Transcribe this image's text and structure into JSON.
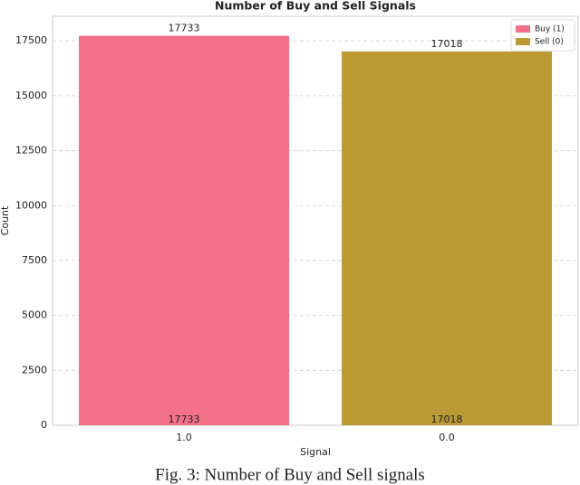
{
  "chart_data": {
    "type": "bar",
    "title": "Number of Buy and Sell Signals",
    "x_label": "Signal",
    "y_label": "Count",
    "categories": [
      "1.0",
      "0.0"
    ],
    "series": [
      {
        "name": "Buy (1)",
        "color": "#f37089",
        "values": [
          17733,
          null
        ]
      },
      {
        "name": "Sell (0)",
        "color": "#bb9a35",
        "values": [
          null,
          17018
        ]
      }
    ],
    "ylim": [
      0,
      18620
    ],
    "yticks": [
      0,
      2500,
      5000,
      7500,
      10000,
      12500,
      15000,
      17500
    ],
    "grid": true,
    "legend": "upper-right"
  },
  "caption": "Fig. 3: Number of Buy and Sell signals"
}
